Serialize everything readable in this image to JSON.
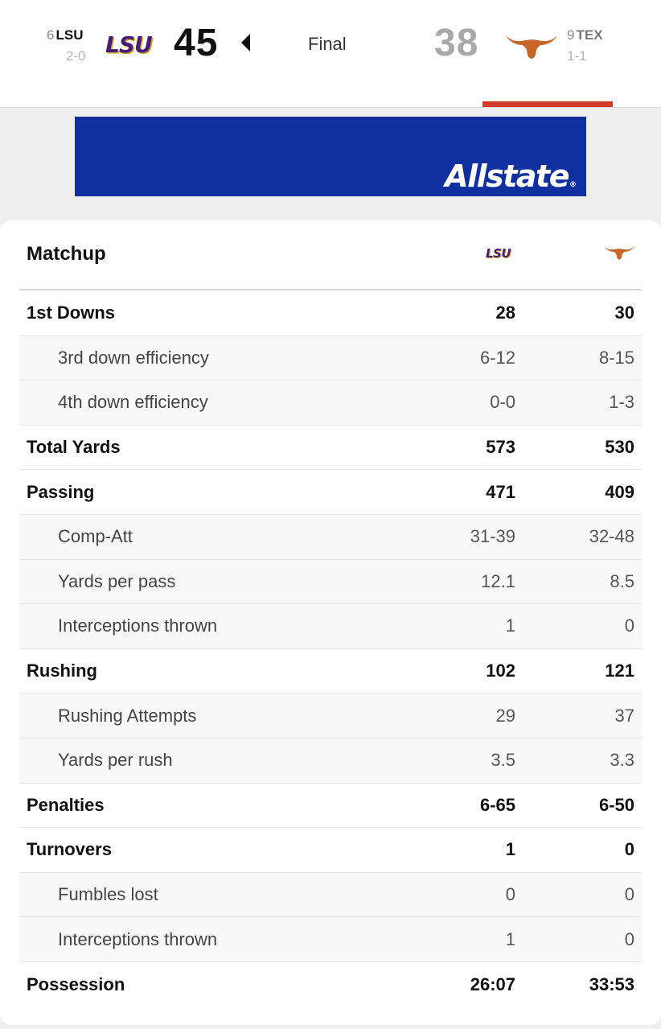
{
  "header": {
    "away": {
      "rank": "6",
      "abbr": "LSU",
      "record": "2-0",
      "logo_text": "LSU",
      "score": "45",
      "winner": true
    },
    "status": "Final",
    "home": {
      "rank": "9",
      "abbr": "TEX",
      "record": "1-1",
      "logo_icon": "longhorn-icon",
      "score": "38"
    }
  },
  "ad": {
    "brand": "Allstate",
    "reg": "®",
    "bg_color": "#1130a0"
  },
  "matchup": {
    "title": "Matchup",
    "col_lsu_logo": "LSU",
    "col_tex_logo_icon": "longhorn-icon",
    "rows": [
      {
        "label": "1st Downs",
        "lsu": "28",
        "tex": "30",
        "sub": false
      },
      {
        "label": "3rd down efficiency",
        "lsu": "6-12",
        "tex": "8-15",
        "sub": true
      },
      {
        "label": "4th down efficiency",
        "lsu": "0-0",
        "tex": "1-3",
        "sub": true
      },
      {
        "label": "Total Yards",
        "lsu": "573",
        "tex": "530",
        "sub": false
      },
      {
        "label": "Passing",
        "lsu": "471",
        "tex": "409",
        "sub": false
      },
      {
        "label": "Comp-Att",
        "lsu": "31-39",
        "tex": "32-48",
        "sub": true
      },
      {
        "label": "Yards per pass",
        "lsu": "12.1",
        "tex": "8.5",
        "sub": true
      },
      {
        "label": "Interceptions thrown",
        "lsu": "1",
        "tex": "0",
        "sub": true
      },
      {
        "label": "Rushing",
        "lsu": "102",
        "tex": "121",
        "sub": false
      },
      {
        "label": "Rushing Attempts",
        "lsu": "29",
        "tex": "37",
        "sub": true
      },
      {
        "label": "Yards per rush",
        "lsu": "3.5",
        "tex": "3.3",
        "sub": true
      },
      {
        "label": "Penalties",
        "lsu": "6-65",
        "tex": "6-50",
        "sub": false
      },
      {
        "label": "Turnovers",
        "lsu": "1",
        "tex": "0",
        "sub": false
      },
      {
        "label": "Fumbles lost",
        "lsu": "0",
        "tex": "0",
        "sub": true
      },
      {
        "label": "Interceptions thrown",
        "lsu": "1",
        "tex": "0",
        "sub": true
      },
      {
        "label": "Possession",
        "lsu": "26:07",
        "tex": "33:53",
        "sub": false
      }
    ]
  },
  "colors": {
    "lsu_purple": "#461d7c",
    "lsu_gold": "#d6a319",
    "tex_orange": "#c8662a",
    "tab_accent": "#d43a2c"
  }
}
